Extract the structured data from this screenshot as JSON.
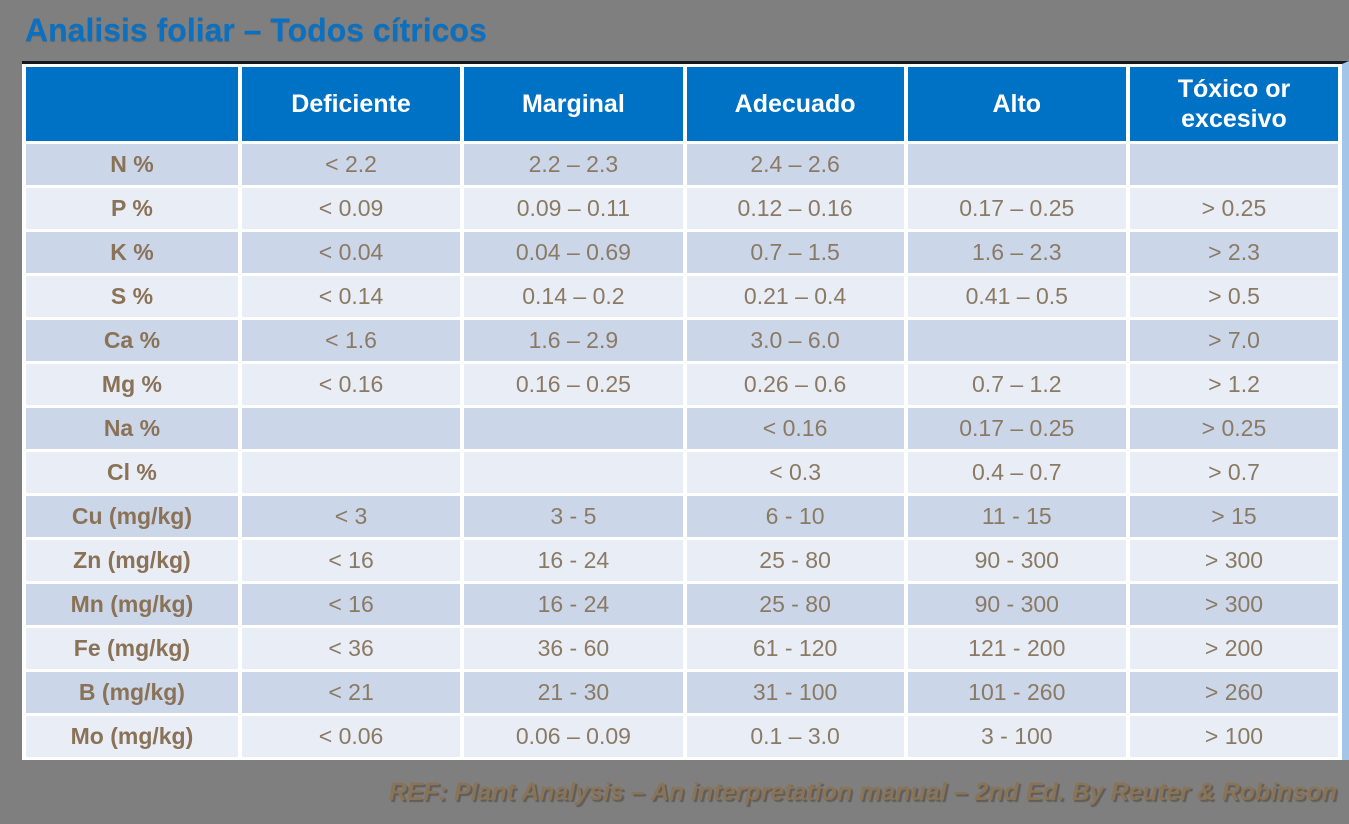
{
  "title": "Analisis foliar – Todos cítricos",
  "footer": "REF: Plant Analysis – An interpretation manual – 2nd Ed. By Reuter & Robinson",
  "colors": {
    "page_background": "#7f7f7f",
    "title_blue": "#0a70c2",
    "header_blue": "#0072c5",
    "row_dark": "#ccd6e9",
    "row_light": "#e9edf6",
    "data_text": "#8a7a64",
    "footer_text": "#8a7457",
    "table_top_border": "#16161e",
    "table_right_border": "#a3c6e8"
  },
  "chart_data": {
    "type": "table",
    "title": "Analisis foliar – Todos cítricos",
    "columns": [
      "",
      "Deficiente",
      "Marginal",
      "Adecuado",
      "Alto",
      "Tóxico or excesivo"
    ],
    "rows": [
      {
        "label": "N %",
        "cells": [
          "< 2.2",
          "2.2 – 2.3",
          "2.4 – 2.6",
          "",
          ""
        ]
      },
      {
        "label": "P %",
        "cells": [
          "< 0.09",
          "0.09 – 0.11",
          "0.12 – 0.16",
          "0.17 – 0.25",
          "> 0.25"
        ]
      },
      {
        "label": "K %",
        "cells": [
          "< 0.04",
          "0.04 – 0.69",
          "0.7 – 1.5",
          "1.6 – 2.3",
          "> 2.3"
        ]
      },
      {
        "label": "S %",
        "cells": [
          "< 0.14",
          "0.14 – 0.2",
          "0.21 – 0.4",
          "0.41 – 0.5",
          "> 0.5"
        ]
      },
      {
        "label": "Ca %",
        "cells": [
          "< 1.6",
          "1.6 – 2.9",
          "3.0 – 6.0",
          "",
          "> 7.0"
        ]
      },
      {
        "label": "Mg %",
        "cells": [
          "< 0.16",
          "0.16 – 0.25",
          "0.26 – 0.6",
          "0.7 – 1.2",
          "> 1.2"
        ]
      },
      {
        "label": "Na %",
        "cells": [
          "",
          "",
          "< 0.16",
          "0.17 – 0.25",
          "> 0.25"
        ]
      },
      {
        "label": "Cl %",
        "cells": [
          "",
          "",
          "< 0.3",
          "0.4 – 0.7",
          "> 0.7"
        ]
      },
      {
        "label": "Cu (mg/kg)",
        "cells": [
          "< 3",
          "3 - 5",
          "6 - 10",
          "11 - 15",
          "> 15"
        ]
      },
      {
        "label": "Zn (mg/kg)",
        "cells": [
          "< 16",
          "16 - 24",
          "25 - 80",
          "90 - 300",
          "> 300"
        ]
      },
      {
        "label": "Mn (mg/kg)",
        "cells": [
          "< 16",
          "16 - 24",
          "25 - 80",
          "90 - 300",
          "> 300"
        ]
      },
      {
        "label": "Fe (mg/kg)",
        "cells": [
          "< 36",
          "36 - 60",
          "61 - 120",
          "121 - 200",
          "> 200"
        ]
      },
      {
        "label": "B (mg/kg)",
        "cells": [
          "< 21",
          "21 - 30",
          "31 - 100",
          "101 - 260",
          "> 260"
        ]
      },
      {
        "label": "Mo (mg/kg)",
        "cells": [
          "< 0.06",
          "0.06 – 0.09",
          "0.1 – 3.0",
          "3 - 100",
          "> 100"
        ]
      }
    ]
  }
}
